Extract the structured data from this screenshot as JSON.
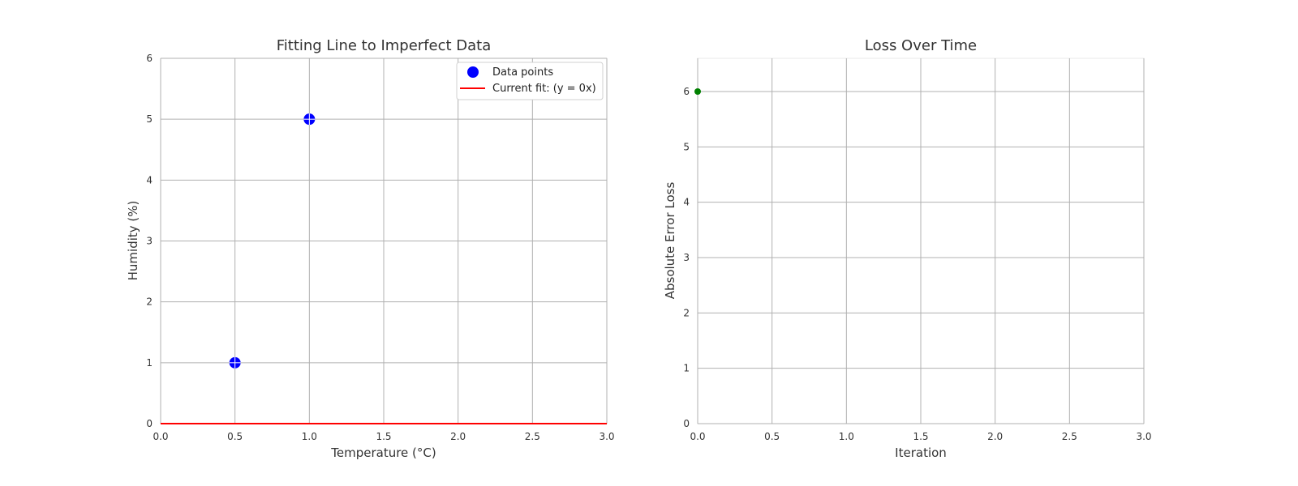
{
  "chart_data": [
    {
      "type": "scatter",
      "title": "Fitting Line to Imperfect Data",
      "xlabel": "Temperature (°C)",
      "ylabel": "Humidity (%)",
      "xlim": [
        0,
        3
      ],
      "ylim": [
        0,
        6
      ],
      "xticks": [
        "0.0",
        "0.5",
        "1.0",
        "1.5",
        "2.0",
        "2.5",
        "3.0"
      ],
      "yticks": [
        "0",
        "1",
        "2",
        "3",
        "4",
        "5",
        "6"
      ],
      "grid": true,
      "legend_position": "top-right",
      "series": [
        {
          "name": "Data points",
          "kind": "scatter",
          "color": "#0000ff",
          "x": [
            0.5,
            1.0
          ],
          "y": [
            1,
            5
          ]
        },
        {
          "name": "Current fit: (y = 0x)",
          "kind": "line",
          "color": "#ff0000",
          "x": [
            0,
            3
          ],
          "y": [
            0,
            0
          ]
        }
      ]
    },
    {
      "type": "line",
      "title": "Loss Over Time",
      "xlabel": "Iteration",
      "ylabel": "Absolute Error Loss",
      "xlim": [
        0,
        3
      ],
      "ylim": [
        0,
        6.6
      ],
      "xticks": [
        "0.0",
        "0.5",
        "1.0",
        "1.5",
        "2.0",
        "2.5",
        "3.0"
      ],
      "yticks": [
        "0",
        "1",
        "2",
        "3",
        "4",
        "5",
        "6"
      ],
      "grid": true,
      "series": [
        {
          "kind": "line-marker",
          "color": "#008000",
          "x": [
            0
          ],
          "y": [
            6
          ]
        }
      ]
    }
  ]
}
